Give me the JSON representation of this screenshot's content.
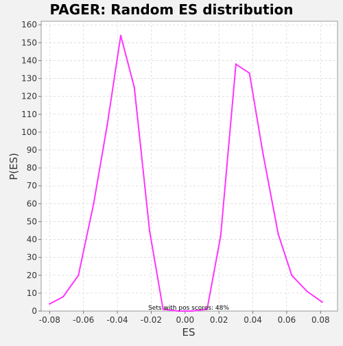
{
  "chart_data": {
    "type": "line",
    "title": "PAGER: Random ES distribution",
    "xlabel": "ES",
    "ylabel": "P(ES)",
    "xlim": [
      -0.085,
      0.09
    ],
    "ylim": [
      0,
      162
    ],
    "xticks": [
      -0.08,
      -0.06,
      -0.04,
      -0.02,
      0.0,
      0.02,
      0.04,
      0.06,
      0.08
    ],
    "xtick_labels": [
      "-0.08",
      "-0.06",
      "-0.04",
      "-0.02",
      "0.00",
      "0.02",
      "0.04",
      "0.06",
      "0.08"
    ],
    "yticks": [
      0,
      10,
      20,
      30,
      40,
      50,
      60,
      70,
      80,
      90,
      100,
      110,
      120,
      130,
      140,
      150,
      160
    ],
    "ytick_labels": [
      "0",
      "10",
      "20",
      "30",
      "40",
      "50",
      "60",
      "70",
      "80",
      "90",
      "100",
      "110",
      "120",
      "130",
      "140",
      "150",
      "160"
    ],
    "grid": true,
    "line_color": "#ff33ff",
    "annotation": "Sets with pos scores: 48%",
    "series": [
      {
        "x": [
          -0.08,
          -0.072,
          -0.063,
          -0.054,
          -0.046,
          -0.038,
          -0.03,
          -0.021,
          -0.013,
          -0.004,
          0.004,
          0.013,
          0.021,
          0.03,
          0.038,
          0.046,
          0.055,
          0.063,
          0.072,
          0.081
        ],
        "y": [
          4,
          8,
          20,
          60,
          104,
          154,
          125,
          45,
          1,
          0,
          0,
          1,
          42,
          138,
          133,
          88,
          43,
          20,
          11,
          5
        ]
      }
    ]
  }
}
